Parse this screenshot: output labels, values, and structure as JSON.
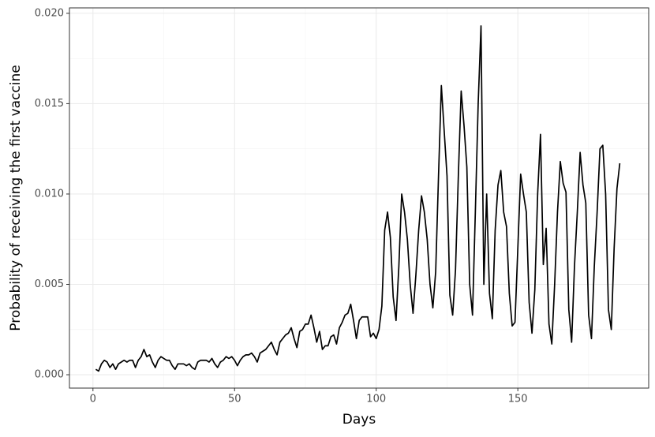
{
  "chart_data": {
    "type": "line",
    "xlabel": "Days",
    "ylabel": "Probability of receiving the first vaccine",
    "x": [
      1,
      2,
      3,
      4,
      5,
      6,
      7,
      8,
      9,
      10,
      11,
      12,
      13,
      14,
      15,
      16,
      17,
      18,
      19,
      20,
      21,
      22,
      23,
      24,
      25,
      26,
      27,
      28,
      29,
      30,
      31,
      32,
      33,
      34,
      35,
      36,
      37,
      38,
      39,
      40,
      41,
      42,
      43,
      44,
      45,
      46,
      47,
      48,
      49,
      50,
      51,
      52,
      53,
      54,
      55,
      56,
      57,
      58,
      59,
      60,
      61,
      62,
      63,
      64,
      65,
      66,
      67,
      68,
      69,
      70,
      71,
      72,
      73,
      74,
      75,
      76,
      77,
      78,
      79,
      80,
      81,
      82,
      83,
      84,
      85,
      86,
      87,
      88,
      89,
      90,
      91,
      92,
      93,
      94,
      95,
      96,
      97,
      98,
      99,
      100,
      101,
      102,
      103,
      104,
      105,
      106,
      107,
      108,
      109,
      110,
      111,
      112,
      113,
      114,
      115,
      116,
      117,
      118,
      119,
      120,
      121,
      122,
      123,
      124,
      125,
      126,
      127,
      128,
      129,
      130,
      131,
      132,
      133,
      134,
      135,
      136,
      137,
      138,
      139,
      140,
      141,
      142,
      143,
      144,
      145,
      146,
      147,
      148,
      149,
      150,
      151,
      152,
      153,
      154,
      155,
      156,
      157,
      158,
      159,
      160,
      161,
      162,
      163,
      164,
      165,
      166,
      167,
      168,
      169,
      170,
      171,
      172,
      173,
      174,
      175,
      176,
      177,
      178,
      179,
      180,
      181,
      182,
      183,
      184,
      185,
      186
    ],
    "values": [
      0.0003,
      0.0002,
      0.0006,
      0.0008,
      0.0007,
      0.0004,
      0.0006,
      0.0003,
      0.0006,
      0.0007,
      0.0008,
      0.0007,
      0.0008,
      0.0008,
      0.0004,
      0.0008,
      0.001,
      0.0014,
      0.001,
      0.0011,
      0.0007,
      0.0004,
      0.0008,
      0.001,
      0.0009,
      0.0008,
      0.0008,
      0.0005,
      0.0003,
      0.0006,
      0.0006,
      0.0006,
      0.0005,
      0.0006,
      0.0004,
      0.0003,
      0.0007,
      0.0008,
      0.0008,
      0.0008,
      0.0007,
      0.0009,
      0.0006,
      0.0004,
      0.0007,
      0.0008,
      0.001,
      0.0009,
      0.001,
      0.0008,
      0.0005,
      0.0008,
      0.001,
      0.0011,
      0.0011,
      0.0012,
      0.001,
      0.0007,
      0.0012,
      0.0013,
      0.0014,
      0.0016,
      0.0018,
      0.0014,
      0.0011,
      0.0018,
      0.002,
      0.0022,
      0.0023,
      0.0026,
      0.002,
      0.0015,
      0.0024,
      0.0025,
      0.0028,
      0.0028,
      0.0033,
      0.0026,
      0.0018,
      0.0024,
      0.0014,
      0.0016,
      0.0016,
      0.0021,
      0.0022,
      0.0017,
      0.0026,
      0.0029,
      0.0033,
      0.0034,
      0.0039,
      0.003,
      0.002,
      0.003,
      0.0032,
      0.0032,
      0.0032,
      0.0021,
      0.0023,
      0.002,
      0.0025,
      0.0038,
      0.008,
      0.009,
      0.0076,
      0.0043,
      0.003,
      0.006,
      0.01,
      0.009,
      0.0075,
      0.005,
      0.0034,
      0.0055,
      0.008,
      0.0099,
      0.009,
      0.0075,
      0.005,
      0.0037,
      0.0057,
      0.011,
      0.016,
      0.0135,
      0.011,
      0.0044,
      0.0033,
      0.0058,
      0.011,
      0.0157,
      0.0138,
      0.0115,
      0.005,
      0.0033,
      0.009,
      0.015,
      0.0193,
      0.005,
      0.01,
      0.0045,
      0.0031,
      0.008,
      0.0105,
      0.0113,
      0.009,
      0.0082,
      0.0045,
      0.0027,
      0.0029,
      0.007,
      0.0111,
      0.01,
      0.009,
      0.004,
      0.0023,
      0.0047,
      0.01,
      0.0133,
      0.0061,
      0.0081,
      0.0028,
      0.0017,
      0.005,
      0.009,
      0.0118,
      0.0106,
      0.0101,
      0.0036,
      0.0018,
      0.006,
      0.009,
      0.0123,
      0.0105,
      0.0095,
      0.0033,
      0.002,
      0.006,
      0.009,
      0.0125,
      0.0127,
      0.01,
      0.0036,
      0.0025,
      0.007,
      0.0103,
      0.0117
    ],
    "color": "#000000",
    "xlim": [
      -8.3,
      196.2
    ],
    "ylim": [
      -0.00074,
      0.0203
    ],
    "xticks": [
      0,
      50,
      100,
      150
    ],
    "yticks": [
      {
        "value": 0,
        "label": "0.000"
      },
      {
        "value": 0.005,
        "label": "0.005"
      },
      {
        "value": 0.01,
        "label": "0.010"
      },
      {
        "value": 0.015,
        "label": "0.015"
      },
      {
        "value": 0.02,
        "label": "0.020"
      }
    ],
    "minor_xticks": [
      25,
      75,
      125,
      175
    ],
    "minor_yticks": [
      0.0025,
      0.0075,
      0.0125,
      0.0175
    ],
    "grid": true
  }
}
